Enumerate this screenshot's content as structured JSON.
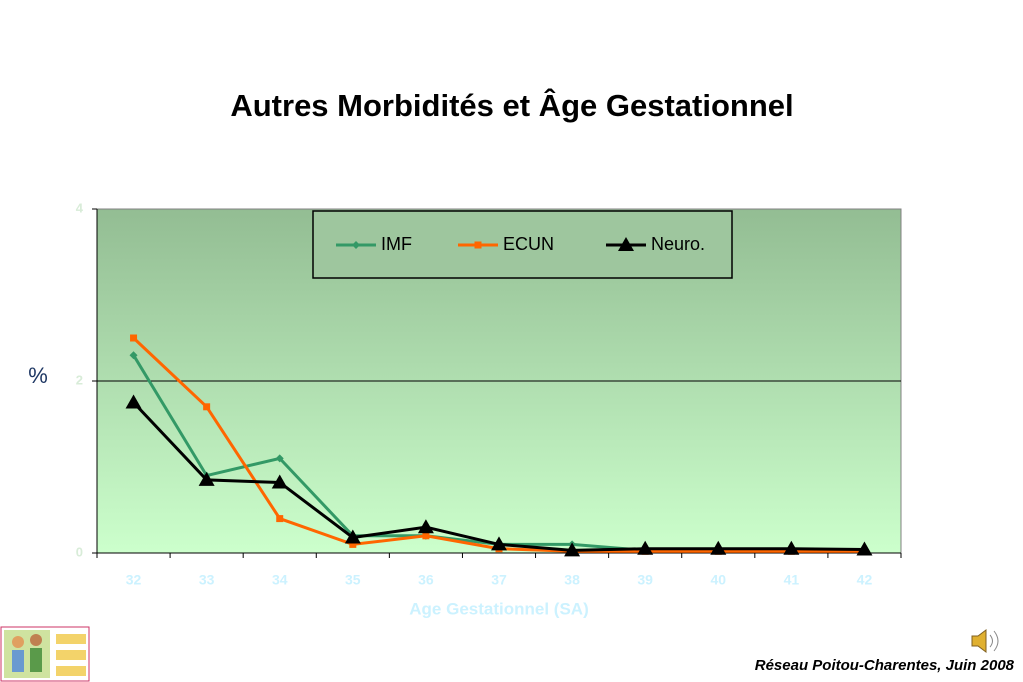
{
  "chart_data": {
    "type": "line",
    "title": "Autres Morbidités et Âge Gestationnel",
    "y_label": "%",
    "x_label": "Age Gestationnel (SA)",
    "categories": [
      "32",
      "33",
      "34",
      "35",
      "36",
      "37",
      "38",
      "39",
      "40",
      "41",
      "42"
    ],
    "series": [
      {
        "name": "IMF",
        "color": "#339966",
        "marker": "diamond",
        "values": [
          2.3,
          0.9,
          1.1,
          0.2,
          0.2,
          0.1,
          0.1,
          0.03,
          0.03,
          0.03,
          0.03
        ]
      },
      {
        "name": "ECUN",
        "color": "#ff6600",
        "marker": "square",
        "values": [
          2.5,
          1.7,
          0.4,
          0.1,
          0.2,
          0.05,
          0.02,
          0.02,
          0.02,
          0.02,
          0.02
        ]
      },
      {
        "name": "Neuro.",
        "color": "#000000",
        "marker": "triangle",
        "values": [
          1.75,
          0.85,
          0.82,
          0.18,
          0.3,
          0.1,
          0.03,
          0.05,
          0.05,
          0.05,
          0.04
        ]
      }
    ],
    "ylim": [
      0,
      4
    ],
    "yticks": [
      0,
      2,
      4
    ],
    "grid": true,
    "legend": "top",
    "footer": "Réseau Poitou-Charentes, Juin 2008"
  }
}
